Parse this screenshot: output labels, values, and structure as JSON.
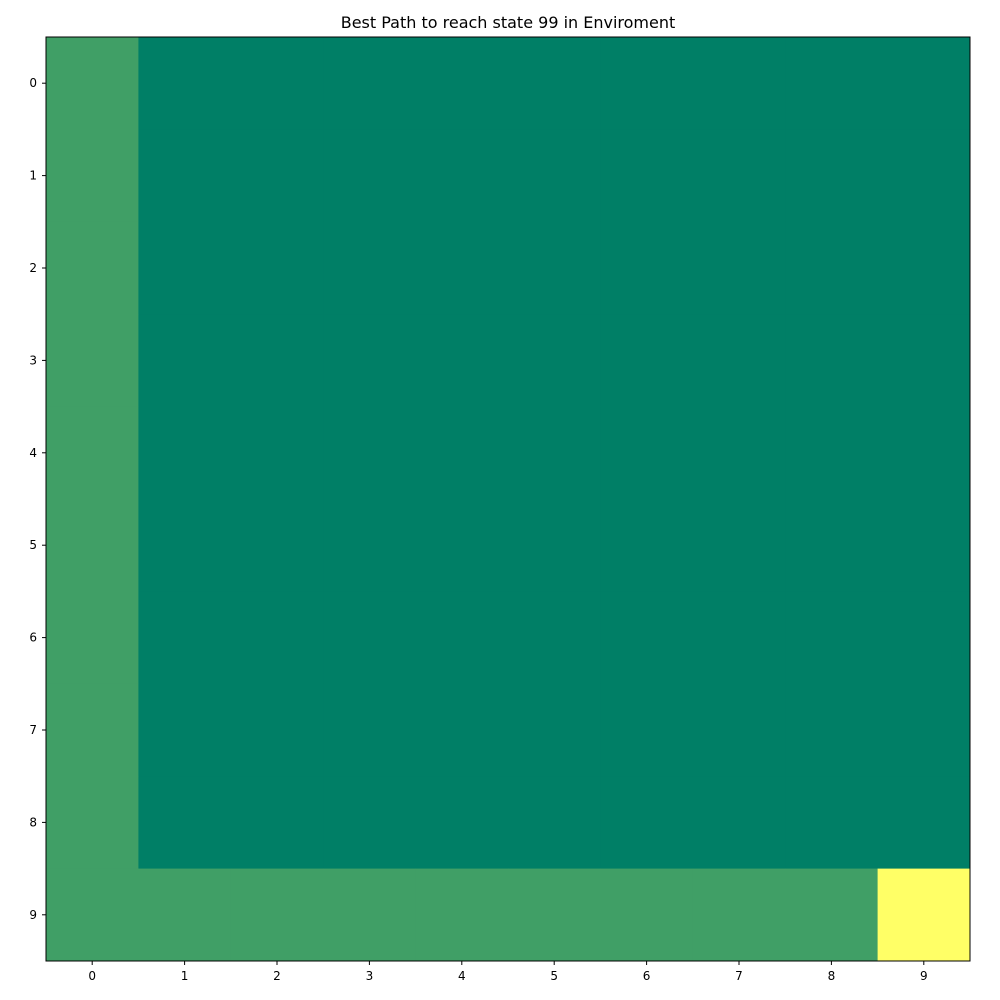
{
  "chart_data": {
    "type": "heatmap",
    "title": "Best Path to reach state 99 in Enviroment",
    "xlabel": "",
    "ylabel": "",
    "x_ticks": [
      "0",
      "1",
      "2",
      "3",
      "4",
      "5",
      "6",
      "7",
      "8",
      "9"
    ],
    "y_ticks": [
      "0",
      "1",
      "2",
      "3",
      "4",
      "5",
      "6",
      "7",
      "8",
      "9"
    ],
    "colormap": "summer",
    "legend": "none",
    "grid": false,
    "cell_values": [
      [
        1,
        0,
        0,
        0,
        0,
        0,
        0,
        0,
        0,
        0
      ],
      [
        1,
        0,
        0,
        0,
        0,
        0,
        0,
        0,
        0,
        0
      ],
      [
        1,
        0,
        0,
        0,
        0,
        0,
        0,
        0,
        0,
        0
      ],
      [
        1,
        0,
        0,
        0,
        0,
        0,
        0,
        0,
        0,
        0
      ],
      [
        1,
        0,
        0,
        0,
        0,
        0,
        0,
        0,
        0,
        0
      ],
      [
        1,
        0,
        0,
        0,
        0,
        0,
        0,
        0,
        0,
        0
      ],
      [
        1,
        0,
        0,
        0,
        0,
        0,
        0,
        0,
        0,
        0
      ],
      [
        1,
        0,
        0,
        0,
        0,
        0,
        0,
        0,
        0,
        0
      ],
      [
        1,
        0,
        0,
        0,
        0,
        0,
        0,
        0,
        0,
        0
      ],
      [
        1,
        1,
        1,
        1,
        1,
        1,
        1,
        1,
        1,
        3
      ]
    ],
    "value_range": [
      0,
      3
    ],
    "colors": {
      "0": "#007f66",
      "1": "#409f66",
      "3": "#ffff66"
    }
  }
}
